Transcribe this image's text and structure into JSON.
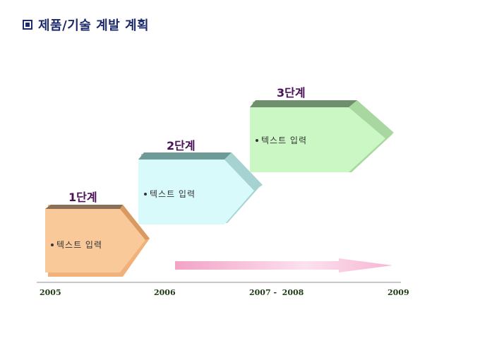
{
  "title": "제품/기술 계발 계획",
  "steps": [
    {
      "label": "1단계",
      "text": "텍스트 입력",
      "front_color": "#f9c99a",
      "top_color": "#8b7058",
      "side_color": "#f0b27a"
    },
    {
      "label": "2단계",
      "text": "텍스트 입력",
      "front_color": "#d8fafa",
      "top_color": "#6e9a98",
      "side_color": "#a7d2d2"
    },
    {
      "label": "3단계",
      "text": "텍스트 입력",
      "front_color": "#cbf7c4",
      "top_color": "#6f8f6d",
      "side_color": "#a8d8a0"
    }
  ],
  "timeline": {
    "years": [
      "2005",
      "2006",
      "2007 -  2008",
      "2009"
    ],
    "arrow_color": "#f3a3c6"
  }
}
